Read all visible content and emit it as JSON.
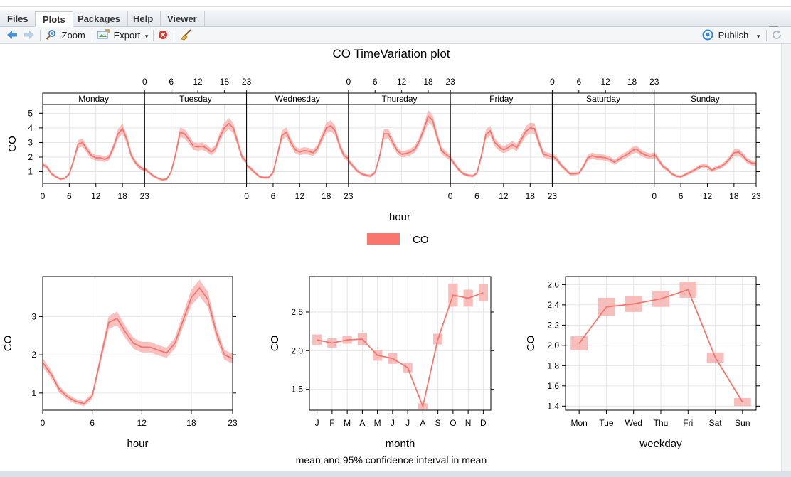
{
  "tabs": [
    "Files",
    "Plots",
    "Packages",
    "Help",
    "Viewer"
  ],
  "toolbar": {
    "zoom": "Zoom",
    "export": "Export",
    "publish": "Publish"
  },
  "plot": {
    "title": "CO TimeVariation plot",
    "footer": "mean and 95% confidence interval in mean",
    "legend_label": "CO",
    "color": "#f8766d",
    "ci_color": "#f7b3b0"
  },
  "chart_data": [
    {
      "type": "line",
      "name": "hour-by-weekday",
      "title": "",
      "xlabel": "hour",
      "ylabel": "CO",
      "panels": [
        "Monday",
        "Tuesday",
        "Wednesday",
        "Thursday",
        "Friday",
        "Saturday",
        "Sunday"
      ],
      "xticks": [
        "0",
        "6",
        "12",
        "18",
        "23"
      ],
      "ylim": [
        0.2,
        5.6
      ],
      "yticks": [
        1,
        2,
        3,
        4,
        5
      ],
      "series": [
        {
          "name": "Monday",
          "values": [
            1.5,
            1.3,
            0.85,
            0.65,
            0.5,
            0.55,
            0.85,
            1.8,
            2.9,
            3.0,
            2.5,
            2.1,
            1.95,
            1.95,
            1.85,
            2.0,
            2.7,
            3.6,
            3.95,
            3.2,
            2.1,
            1.6,
            1.3,
            1.1
          ]
        },
        {
          "name": "Tuesday",
          "values": [
            1.2,
            0.95,
            0.7,
            0.55,
            0.45,
            0.5,
            1.0,
            2.2,
            3.7,
            3.6,
            3.2,
            2.75,
            2.7,
            2.75,
            2.6,
            2.35,
            2.6,
            3.4,
            4.0,
            4.3,
            4.0,
            3.0,
            2.0,
            1.7
          ]
        },
        {
          "name": "Wednesday",
          "values": [
            1.45,
            1.2,
            0.9,
            0.65,
            0.6,
            0.6,
            0.95,
            2.2,
            3.5,
            3.7,
            3.0,
            2.5,
            2.35,
            2.45,
            2.4,
            2.3,
            2.6,
            3.3,
            4.0,
            4.15,
            3.8,
            2.8,
            2.1,
            1.9
          ]
        },
        {
          "name": "Thursday",
          "values": [
            1.75,
            1.4,
            1.05,
            0.85,
            0.75,
            0.7,
            0.95,
            2.0,
            3.6,
            3.6,
            3.0,
            2.45,
            2.2,
            2.25,
            2.35,
            2.55,
            3.1,
            3.9,
            4.8,
            4.5,
            3.4,
            2.45,
            2.2,
            1.95
          ]
        },
        {
          "name": "Friday",
          "values": [
            1.9,
            1.5,
            1.1,
            0.85,
            0.75,
            0.7,
            0.9,
            2.1,
            3.55,
            3.8,
            3.0,
            2.7,
            2.5,
            2.65,
            2.85,
            2.65,
            3.2,
            3.75,
            4.0,
            3.95,
            3.0,
            2.2,
            2.1,
            2.0
          ]
        },
        {
          "name": "Saturday",
          "values": [
            2.1,
            1.85,
            1.45,
            1.15,
            0.85,
            0.85,
            0.9,
            1.35,
            1.95,
            2.1,
            2.0,
            2.0,
            1.95,
            1.85,
            1.65,
            1.85,
            2.05,
            2.2,
            2.45,
            2.55,
            2.3,
            2.15,
            2.05,
            2.1
          ]
        },
        {
          "name": "Sunday",
          "values": [
            2.2,
            1.8,
            1.35,
            1.15,
            0.85,
            0.7,
            0.65,
            0.8,
            0.95,
            1.1,
            1.3,
            1.4,
            1.35,
            1.1,
            1.25,
            1.35,
            1.55,
            1.9,
            2.3,
            2.35,
            2.1,
            1.75,
            1.6,
            1.55
          ]
        }
      ]
    },
    {
      "type": "line",
      "name": "hour",
      "title": "",
      "xlabel": "hour",
      "ylabel": "CO",
      "x": [
        0,
        1,
        2,
        3,
        4,
        5,
        6,
        7,
        8,
        9,
        10,
        11,
        12,
        13,
        14,
        15,
        16,
        17,
        18,
        19,
        20,
        21,
        22,
        23
      ],
      "values": [
        1.8,
        1.5,
        1.1,
        0.9,
        0.78,
        0.72,
        0.92,
        1.9,
        2.85,
        2.95,
        2.6,
        2.3,
        2.2,
        2.2,
        2.12,
        2.05,
        2.3,
        2.9,
        3.5,
        3.75,
        3.45,
        2.6,
        2.0,
        1.9
      ],
      "xticks": [
        "0",
        "6",
        "12",
        "18",
        "23"
      ],
      "yticks": [
        1,
        2,
        3
      ],
      "ylim": [
        0.55,
        4.05
      ]
    },
    {
      "type": "line",
      "name": "month",
      "title": "",
      "xlabel": "month",
      "ylabel": "CO",
      "categories": [
        "J",
        "F",
        "M",
        "A",
        "M",
        "J",
        "J",
        "A",
        "S",
        "O",
        "N",
        "D"
      ],
      "values": [
        2.14,
        2.1,
        2.14,
        2.15,
        1.94,
        1.9,
        1.78,
        1.28,
        2.15,
        2.72,
        2.68,
        2.75
      ],
      "ci_half": [
        0.07,
        0.06,
        0.05,
        0.08,
        0.07,
        0.07,
        0.06,
        0.04,
        0.07,
        0.15,
        0.11,
        0.11
      ],
      "yticks": [
        1.5,
        2.0,
        2.5
      ],
      "ylim": [
        1.23,
        2.96
      ]
    },
    {
      "type": "line",
      "name": "weekday",
      "title": "",
      "xlabel": "weekday",
      "ylabel": "CO",
      "categories": [
        "Mon",
        "Tue",
        "Wed",
        "Thu",
        "Fri",
        "Sat",
        "Sun"
      ],
      "values": [
        2.02,
        2.38,
        2.41,
        2.46,
        2.55,
        1.88,
        1.44
      ],
      "ci_half": [
        0.07,
        0.09,
        0.08,
        0.08,
        0.08,
        0.05,
        0.04
      ],
      "yticks": [
        1.4,
        1.6,
        1.8,
        2.0,
        2.2,
        2.4,
        2.6
      ],
      "ylim": [
        1.36,
        2.68
      ]
    }
  ]
}
